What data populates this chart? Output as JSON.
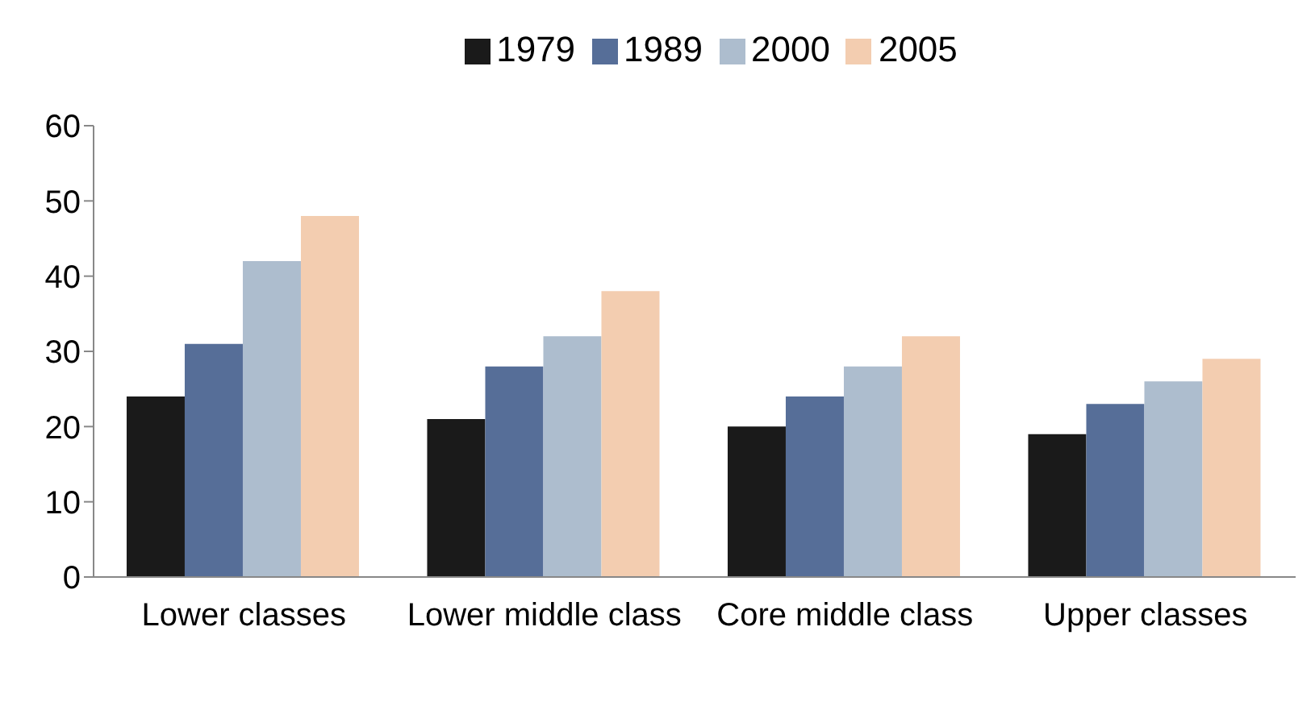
{
  "chart_data": {
    "type": "bar",
    "categories": [
      "Lower classes",
      "Lower middle class",
      "Core middle class",
      "Upper classes"
    ],
    "series": [
      {
        "name": "1979",
        "color": "#1a1a1a",
        "values": [
          24,
          21,
          20,
          19
        ]
      },
      {
        "name": "1989",
        "color": "#566e98",
        "values": [
          31,
          28,
          24,
          23
        ]
      },
      {
        "name": "2000",
        "color": "#adbdce",
        "values": [
          42,
          32,
          28,
          26
        ]
      },
      {
        "name": "2005",
        "color": "#f3cdb0",
        "values": [
          48,
          38,
          32,
          29
        ]
      }
    ],
    "ylim": [
      0,
      60
    ],
    "yticks": [
      0,
      10,
      20,
      30,
      40,
      50,
      60
    ],
    "grid": false,
    "legend": "top"
  }
}
